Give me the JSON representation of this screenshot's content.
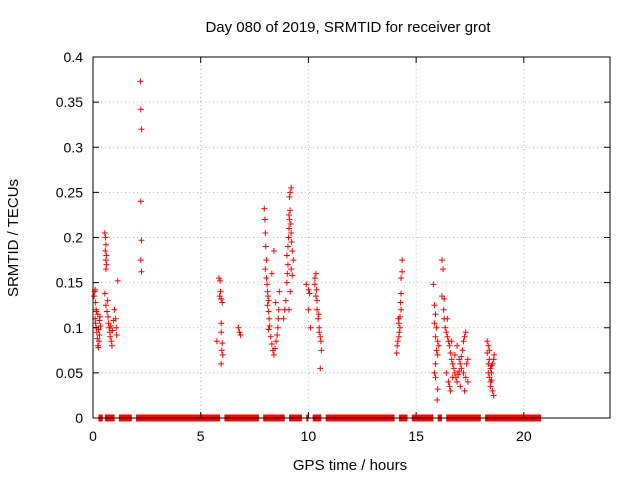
{
  "chart_data": {
    "type": "scatter",
    "title": "Day 080 of 2019, SRMTID for receiver grot",
    "xlabel": "GPS time / hours",
    "ylabel": "SRMTID / TECUs",
    "xlim": [
      0,
      24
    ],
    "ylim": [
      0,
      0.4
    ],
    "x_ticks": [
      0,
      5,
      10,
      15,
      20
    ],
    "y_ticks": [
      0,
      0.05,
      0.1,
      0.15,
      0.2,
      0.25,
      0.3,
      0.35,
      0.4
    ],
    "x_tick_labels": [
      "0",
      "5",
      "10",
      "15",
      "20"
    ],
    "y_tick_labels": [
      "0",
      "0.05",
      "0.1",
      "0.15",
      "0.2",
      "0.25",
      "0.3",
      "0.35",
      "0.4"
    ],
    "grid": true,
    "marker": "+",
    "color": "#ff0000",
    "zero_segments": [
      [
        0.25,
        0.45
      ],
      [
        0.55,
        1.0
      ],
      [
        1.2,
        1.8
      ],
      [
        2.0,
        5.9
      ],
      [
        6.1,
        7.7
      ],
      [
        7.9,
        8.9
      ],
      [
        9.1,
        9.7
      ],
      [
        9.9,
        10.0
      ],
      [
        10.2,
        10.6
      ],
      [
        10.8,
        14.0
      ],
      [
        14.2,
        14.6
      ],
      [
        14.8,
        15.8
      ],
      [
        16.0,
        16.2
      ],
      [
        16.4,
        18.0
      ],
      [
        18.2,
        20.8
      ]
    ],
    "series": [
      {
        "name": "SRMTID",
        "points": [
          [
            0.05,
            0.135
          ],
          [
            0.08,
            0.14
          ],
          [
            0.1,
            0.142
          ],
          [
            0.12,
            0.128
          ],
          [
            0.14,
            0.12
          ],
          [
            0.1,
            0.11
          ],
          [
            0.12,
            0.105
          ],
          [
            0.15,
            0.1
          ],
          [
            0.18,
            0.095
          ],
          [
            0.2,
            0.088
          ],
          [
            0.22,
            0.08
          ],
          [
            0.25,
            0.078
          ],
          [
            0.28,
            0.085
          ],
          [
            0.3,
            0.108
          ],
          [
            0.32,
            0.112
          ],
          [
            0.35,
            0.102
          ],
          [
            0.16,
            0.118
          ],
          [
            0.22,
            0.115
          ],
          [
            0.26,
            0.098
          ],
          [
            0.3,
            0.092
          ],
          [
            0.55,
            0.205
          ],
          [
            0.58,
            0.2
          ],
          [
            0.6,
            0.192
          ],
          [
            0.57,
            0.185
          ],
          [
            0.62,
            0.18
          ],
          [
            0.6,
            0.175
          ],
          [
            0.63,
            0.17
          ],
          [
            0.6,
            0.165
          ],
          [
            0.55,
            0.138
          ],
          [
            0.6,
            0.125
          ],
          [
            0.65,
            0.118
          ],
          [
            0.7,
            0.112
          ],
          [
            0.72,
            0.105
          ],
          [
            0.75,
            0.1
          ],
          [
            0.78,
            0.095
          ],
          [
            0.8,
            0.09
          ],
          [
            0.85,
            0.085
          ],
          [
            0.88,
            0.08
          ],
          [
            0.9,
            0.097
          ],
          [
            0.95,
            0.108
          ],
          [
            1.0,
            0.12
          ],
          [
            1.05,
            0.11
          ],
          [
            1.08,
            0.1
          ],
          [
            1.1,
            0.092
          ],
          [
            0.68,
            0.13
          ],
          [
            0.82,
            0.102
          ],
          [
            1.15,
            0.152
          ],
          [
            2.2,
            0.373
          ],
          [
            2.22,
            0.342
          ],
          [
            2.25,
            0.32
          ],
          [
            2.22,
            0.24
          ],
          [
            2.25,
            0.197
          ],
          [
            2.22,
            0.175
          ],
          [
            2.25,
            0.162
          ],
          [
            5.75,
            0.085
          ],
          [
            5.85,
            0.155
          ],
          [
            5.9,
            0.152
          ],
          [
            5.92,
            0.14
          ],
          [
            5.95,
            0.132
          ],
          [
            5.88,
            0.135
          ],
          [
            6.0,
            0.128
          ],
          [
            5.95,
            0.105
          ],
          [
            5.95,
            0.095
          ],
          [
            6.0,
            0.083
          ],
          [
            5.98,
            0.075
          ],
          [
            6.02,
            0.07
          ],
          [
            5.95,
            0.06
          ],
          [
            6.75,
            0.1
          ],
          [
            6.8,
            0.095
          ],
          [
            6.85,
            0.092
          ],
          [
            7.95,
            0.232
          ],
          [
            7.98,
            0.22
          ],
          [
            8.0,
            0.205
          ],
          [
            8.02,
            0.19
          ],
          [
            8.05,
            0.175
          ],
          [
            8.0,
            0.165
          ],
          [
            8.05,
            0.155
          ],
          [
            8.08,
            0.148
          ],
          [
            8.1,
            0.14
          ],
          [
            8.12,
            0.135
          ],
          [
            8.15,
            0.13
          ],
          [
            8.1,
            0.125
          ],
          [
            8.15,
            0.118
          ],
          [
            8.18,
            0.11
          ],
          [
            8.2,
            0.102
          ],
          [
            8.15,
            0.098
          ],
          [
            8.25,
            0.09
          ],
          [
            8.3,
            0.082
          ],
          [
            8.35,
            0.075
          ],
          [
            8.4,
            0.07
          ],
          [
            8.45,
            0.077
          ],
          [
            8.5,
            0.085
          ],
          [
            8.55,
            0.092
          ],
          [
            8.6,
            0.11
          ],
          [
            8.62,
            0.12
          ],
          [
            8.65,
            0.14
          ],
          [
            8.4,
            0.185
          ],
          [
            8.3,
            0.16
          ],
          [
            8.48,
            0.128
          ],
          [
            8.58,
            0.1
          ],
          [
            8.85,
            0.11
          ],
          [
            8.9,
            0.12
          ],
          [
            8.95,
            0.13
          ],
          [
            9.0,
            0.15
          ],
          [
            9.02,
            0.16
          ],
          [
            9.05,
            0.17
          ],
          [
            9.0,
            0.18
          ],
          [
            9.05,
            0.19
          ],
          [
            9.08,
            0.2
          ],
          [
            9.1,
            0.21
          ],
          [
            9.12,
            0.22
          ],
          [
            9.15,
            0.23
          ],
          [
            9.12,
            0.245
          ],
          [
            9.15,
            0.25
          ],
          [
            9.2,
            0.255
          ],
          [
            9.1,
            0.225
          ],
          [
            9.18,
            0.215
          ],
          [
            9.2,
            0.205
          ],
          [
            9.22,
            0.195
          ],
          [
            9.25,
            0.185
          ],
          [
            9.3,
            0.175
          ],
          [
            9.25,
            0.158
          ],
          [
            9.2,
            0.165
          ],
          [
            9.15,
            0.14
          ],
          [
            9.1,
            0.12
          ],
          [
            9.9,
            0.148
          ],
          [
            10.0,
            0.142
          ],
          [
            10.05,
            0.138
          ],
          [
            10.0,
            0.12
          ],
          [
            10.1,
            0.1
          ],
          [
            10.3,
            0.155
          ],
          [
            10.35,
            0.16
          ],
          [
            10.3,
            0.148
          ],
          [
            10.35,
            0.135
          ],
          [
            10.4,
            0.13
          ],
          [
            10.4,
            0.12
          ],
          [
            10.45,
            0.11
          ],
          [
            10.5,
            0.1
          ],
          [
            10.5,
            0.095
          ],
          [
            10.55,
            0.09
          ],
          [
            10.58,
            0.085
          ],
          [
            10.6,
            0.075
          ],
          [
            10.55,
            0.055
          ],
          [
            10.38,
            0.142
          ],
          [
            10.48,
            0.115
          ],
          [
            14.1,
            0.072
          ],
          [
            14.12,
            0.08
          ],
          [
            14.15,
            0.085
          ],
          [
            14.2,
            0.09
          ],
          [
            14.22,
            0.095
          ],
          [
            14.25,
            0.1
          ],
          [
            14.2,
            0.105
          ],
          [
            14.25,
            0.112
          ],
          [
            14.3,
            0.12
          ],
          [
            14.28,
            0.128
          ],
          [
            14.3,
            0.138
          ],
          [
            14.3,
            0.155
          ],
          [
            14.35,
            0.162
          ],
          [
            14.35,
            0.175
          ],
          [
            14.18,
            0.11
          ],
          [
            15.8,
            0.148
          ],
          [
            15.85,
            0.125
          ],
          [
            15.9,
            0.115
          ],
          [
            15.85,
            0.105
          ],
          [
            15.95,
            0.1
          ],
          [
            15.9,
            0.09
          ],
          [
            16.0,
            0.085
          ],
          [
            16.05,
            0.08
          ],
          [
            15.95,
            0.075
          ],
          [
            16.0,
            0.07
          ],
          [
            15.9,
            0.06
          ],
          [
            15.85,
            0.05
          ],
          [
            15.9,
            0.045
          ],
          [
            16.0,
            0.032
          ],
          [
            15.98,
            0.02
          ],
          [
            16.2,
            0.175
          ],
          [
            16.25,
            0.165
          ],
          [
            16.2,
            0.135
          ],
          [
            16.3,
            0.132
          ],
          [
            16.28,
            0.12
          ],
          [
            16.3,
            0.11
          ],
          [
            16.35,
            0.1
          ],
          [
            16.4,
            0.095
          ],
          [
            16.45,
            0.09
          ],
          [
            16.5,
            0.085
          ],
          [
            16.55,
            0.08
          ],
          [
            16.6,
            0.072
          ],
          [
            16.65,
            0.065
          ],
          [
            16.7,
            0.06
          ],
          [
            16.75,
            0.055
          ],
          [
            16.8,
            0.05
          ],
          [
            16.85,
            0.045
          ],
          [
            16.9,
            0.04
          ],
          [
            16.95,
            0.048
          ],
          [
            17.0,
            0.052
          ],
          [
            17.05,
            0.06
          ],
          [
            17.1,
            0.068
          ],
          [
            17.15,
            0.075
          ],
          [
            17.2,
            0.085
          ],
          [
            17.25,
            0.09
          ],
          [
            17.3,
            0.095
          ],
          [
            16.4,
            0.05
          ],
          [
            16.5,
            0.04
          ],
          [
            16.55,
            0.035
          ],
          [
            16.6,
            0.03
          ],
          [
            16.7,
            0.045
          ],
          [
            16.8,
            0.07
          ],
          [
            16.9,
            0.08
          ],
          [
            17.0,
            0.065
          ],
          [
            17.1,
            0.055
          ],
          [
            17.2,
            0.05
          ],
          [
            17.3,
            0.045
          ],
          [
            17.4,
            0.04
          ],
          [
            17.35,
            0.06
          ],
          [
            17.4,
            0.065
          ],
          [
            17.25,
            0.03
          ],
          [
            16.45,
            0.11
          ],
          [
            16.65,
            0.085
          ],
          [
            17.05,
            0.035
          ],
          [
            18.3,
            0.085
          ],
          [
            18.35,
            0.08
          ],
          [
            18.4,
            0.075
          ],
          [
            18.3,
            0.072
          ],
          [
            18.4,
            0.065
          ],
          [
            18.35,
            0.06
          ],
          [
            18.45,
            0.055
          ],
          [
            18.5,
            0.05
          ],
          [
            18.4,
            0.045
          ],
          [
            18.5,
            0.042
          ],
          [
            18.45,
            0.035
          ],
          [
            18.55,
            0.03
          ],
          [
            18.6,
            0.025
          ],
          [
            18.55,
            0.06
          ],
          [
            18.6,
            0.065
          ],
          [
            18.62,
            0.07
          ],
          [
            18.45,
            0.04
          ],
          [
            18.5,
            0.058
          ],
          [
            18.35,
            0.05
          ]
        ]
      }
    ]
  }
}
